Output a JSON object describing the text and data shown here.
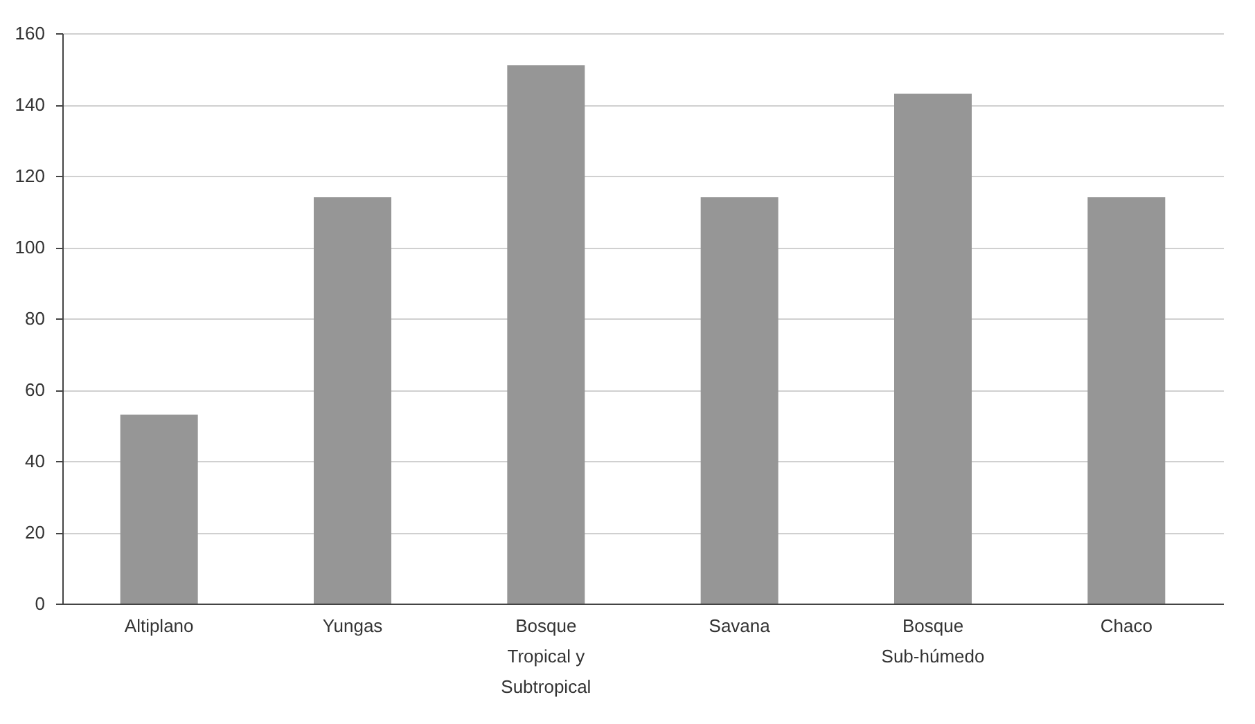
{
  "chart_data": {
    "type": "bar",
    "categories": [
      "Altiplano",
      "Yungas",
      "Bosque Tropical y Subtropical",
      "Savana",
      "Bosque Sub-húmedo",
      "Chaco"
    ],
    "values": [
      53,
      114,
      151,
      114,
      143,
      114
    ],
    "color": "#969696",
    "ylim": [
      0,
      160
    ],
    "yticks": [
      0,
      20,
      40,
      60,
      80,
      100,
      120,
      140,
      160
    ],
    "grid": "y"
  }
}
